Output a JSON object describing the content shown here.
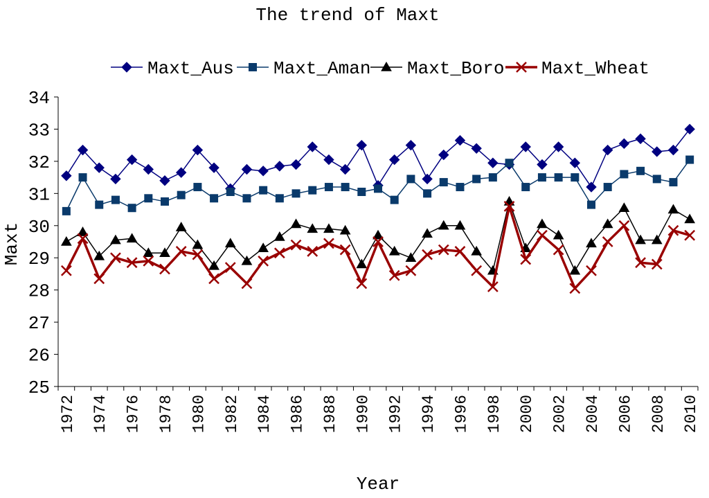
{
  "chart_data": {
    "type": "line",
    "title": "The trend of Maxt",
    "xlabel": "Year",
    "ylabel": "Maxt",
    "ylim": [
      25,
      34
    ],
    "yticks": [
      "25",
      "26",
      "27",
      "28",
      "29",
      "30",
      "31",
      "32",
      "33",
      "34"
    ],
    "grid": false,
    "legend_position": "top",
    "categories": [
      "1972",
      "1973",
      "1974",
      "1975",
      "1976",
      "1977",
      "1978",
      "1979",
      "1980",
      "1981",
      "1982",
      "1983",
      "1984",
      "1985",
      "1986",
      "1987",
      "1988",
      "1989",
      "1990",
      "1991",
      "1992",
      "1993",
      "1994",
      "1995",
      "1996",
      "1997",
      "1998",
      "1999",
      "2000",
      "2001",
      "2002",
      "2003",
      "2004",
      "2005",
      "2006",
      "2007",
      "2008",
      "2009",
      "2010"
    ],
    "x_tick_labels": [
      "1972",
      "1974",
      "1976",
      "1978",
      "1980",
      "1982",
      "1984",
      "1986",
      "1988",
      "1990",
      "1992",
      "1994",
      "1996",
      "1998",
      "2000",
      "2002",
      "2004",
      "2006",
      "2008",
      "2010"
    ],
    "series": [
      {
        "name": "Maxt_Aus",
        "color": "#000080",
        "marker": "diamond",
        "values": [
          31.55,
          32.35,
          31.8,
          31.45,
          32.05,
          31.75,
          31.4,
          31.65,
          32.35,
          31.8,
          31.15,
          31.75,
          31.7,
          31.85,
          31.9,
          32.45,
          32.05,
          31.75,
          32.5,
          31.25,
          32.05,
          32.5,
          31.45,
          32.2,
          32.65,
          32.4,
          31.95,
          31.9,
          32.45,
          31.9,
          32.45,
          31.95,
          31.2,
          32.35,
          32.55,
          32.7,
          32.3,
          32.35,
          33.0
        ]
      },
      {
        "name": "Maxt_Aman",
        "color": "#0a3a6b",
        "marker": "square",
        "values": [
          30.45,
          31.5,
          30.65,
          30.8,
          30.55,
          30.85,
          30.75,
          30.95,
          31.2,
          30.85,
          31.05,
          30.85,
          31.1,
          30.85,
          31.0,
          31.1,
          31.2,
          31.2,
          31.05,
          31.15,
          30.8,
          31.45,
          31.0,
          31.35,
          31.2,
          31.45,
          31.5,
          31.95,
          31.2,
          31.5,
          31.5,
          31.5,
          30.65,
          31.2,
          31.6,
          31.7,
          31.45,
          31.35,
          32.05
        ]
      },
      {
        "name": "Maxt_Boro",
        "color": "#000000",
        "marker": "triangle",
        "values": [
          29.5,
          29.8,
          29.05,
          29.55,
          29.6,
          29.15,
          29.15,
          29.95,
          29.4,
          28.75,
          29.45,
          28.9,
          29.3,
          29.65,
          30.05,
          29.9,
          29.9,
          29.85,
          28.8,
          29.7,
          29.2,
          29.0,
          29.75,
          30.0,
          30.0,
          29.2,
          28.6,
          30.75,
          29.3,
          30.05,
          29.7,
          28.6,
          29.45,
          30.05,
          30.55,
          29.55,
          29.55,
          30.5,
          30.2
        ]
      },
      {
        "name": "Maxt_Wheat",
        "color": "#990000",
        "marker": "x",
        "values": [
          28.6,
          29.6,
          28.35,
          29.0,
          28.85,
          28.9,
          28.65,
          29.2,
          29.1,
          28.35,
          28.7,
          28.2,
          28.9,
          29.15,
          29.4,
          29.2,
          29.45,
          29.25,
          28.2,
          29.5,
          28.45,
          28.6,
          29.1,
          29.25,
          29.2,
          28.6,
          28.1,
          30.6,
          28.95,
          29.7,
          29.25,
          28.05,
          28.6,
          29.5,
          30.0,
          28.85,
          28.8,
          29.85,
          29.7
        ]
      }
    ]
  }
}
